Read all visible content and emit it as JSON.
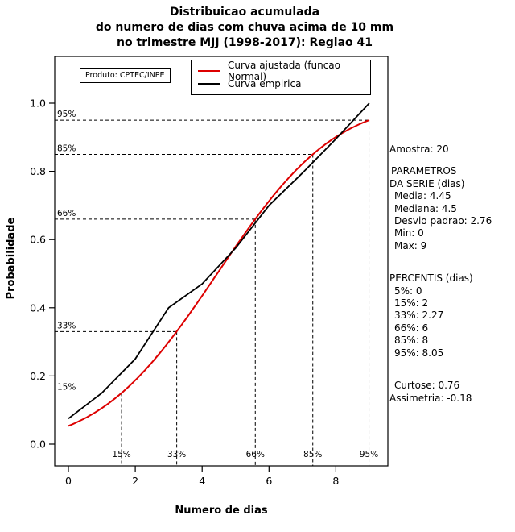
{
  "title": {
    "line1": "Distribuicao acumulada",
    "line2": "do numero de dias com chuva acima de 10 mm",
    "line3": "no trimestre MJJ (1998-2017): Regiao 41"
  },
  "product_label": "Produto: CPTEC/INPE",
  "legend": {
    "fitted_label": "Curva ajustada (funcao Normal)",
    "empirical_label": "Curva empirica"
  },
  "axes": {
    "xlabel": "Numero de dias",
    "ylabel": "Probabilidade"
  },
  "colors": {
    "fitted": "#dd0000",
    "empirical": "#000000",
    "guides": "#000000"
  },
  "stats_panel": {
    "amostra": "Amostra: 20",
    "parametros_header1": "PARAMETROS",
    "parametros_header2": "DA SERIE (dias)",
    "parametros": [
      "Media: 4.45",
      "Mediana: 4.5",
      "Desvio padrao: 2.76",
      "Min: 0",
      "Max: 9"
    ],
    "percentis_header": "PERCENTIS (dias)",
    "percentis": [
      "5%: 0",
      "15%: 2",
      "33%: 2.27",
      "66%: 6",
      "85%: 8",
      "95%: 8.05"
    ],
    "curtose": "Curtose: 0.76",
    "assimetria": "Assimetria: -0.18"
  },
  "chart_data": {
    "type": "line",
    "title": "Distribuicao acumulada do numero de dias com chuva acima de 10 mm no trimestre MJJ (1998-2017): Regiao 41",
    "xlabel": "Numero de dias",
    "ylabel": "Probabilidade",
    "xlim": [
      0,
      9
    ],
    "ylim": [
      0,
      1.0
    ],
    "x_ticks": [
      0,
      2,
      4,
      6,
      8
    ],
    "y_ticks": [
      0.0,
      0.2,
      0.4,
      0.6,
      0.8,
      1.0
    ],
    "y_tick_labels": [
      "0.0",
      "0.2",
      "0.4",
      "0.6",
      "0.8",
      "1.0"
    ],
    "grid": false,
    "legend_position": "top-right",
    "series": [
      {
        "name": "Curva ajustada (funcao Normal)",
        "color": "#dd0000",
        "model": "normal_cdf",
        "mean": 4.45,
        "sd": 2.76,
        "x_range": [
          0,
          9
        ],
        "x": [
          0,
          1,
          2,
          3,
          4,
          5,
          6,
          7,
          8,
          9
        ],
        "y": [
          0.053,
          0.106,
          0.187,
          0.3,
          0.435,
          0.579,
          0.713,
          0.822,
          0.901,
          0.95
        ]
      },
      {
        "name": "Curva empirica",
        "color": "#000000",
        "x": [
          0,
          1,
          2,
          3,
          4,
          5,
          6,
          7,
          8,
          9
        ],
        "y": [
          0.075,
          0.15,
          0.25,
          0.4,
          0.47,
          0.575,
          0.7,
          0.795,
          0.895,
          1.0
        ]
      }
    ],
    "percentile_guides": [
      {
        "label": "15%",
        "p": 0.15,
        "x": 1.59
      },
      {
        "label": "33%",
        "p": 0.33,
        "x": 3.24
      },
      {
        "label": "66%",
        "p": 0.66,
        "x": 5.59
      },
      {
        "label": "85%",
        "p": 0.85,
        "x": 7.31
      },
      {
        "label": "95%",
        "p": 0.95,
        "x": 8.99
      }
    ]
  }
}
